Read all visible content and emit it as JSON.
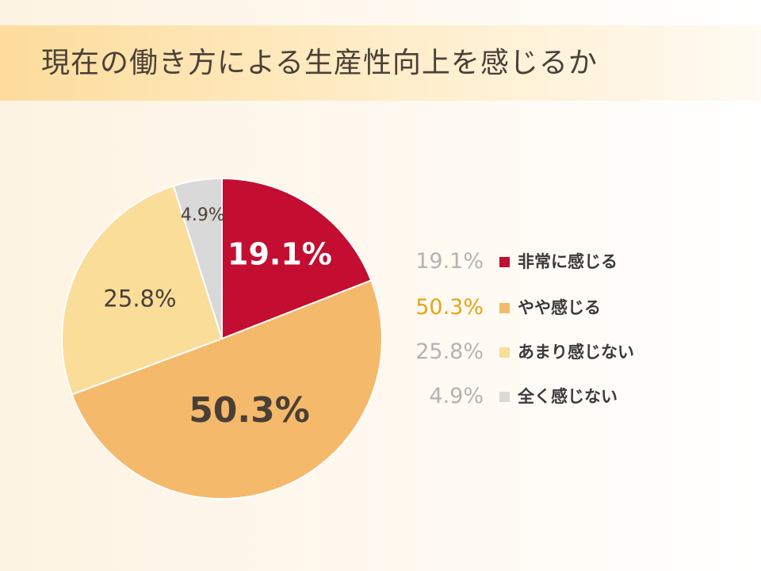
{
  "title": "現在の働き方による生産性向上を感じるか",
  "chart_data": {
    "type": "pie",
    "categories": [
      "非常に感じる",
      "やや感じる",
      "あまり感じない",
      "全く感じない"
    ],
    "values": [
      19.1,
      50.3,
      25.8,
      4.9
    ],
    "labels": [
      "19.1%",
      "50.3%",
      "25.8%",
      "4.9%"
    ],
    "colors": [
      "#c30d31",
      "#f5b96b",
      "#fbdd9a",
      "#d9d9d9"
    ],
    "label_colors": [
      "#ffffff",
      "#4a3f36",
      "#4a3f36",
      "#4a3f36"
    ],
    "legend_pct_colors": [
      "#b3b3b3",
      "#e9a317",
      "#b3b3b3",
      "#b3b3b3"
    ],
    "legend_position": "right",
    "start_angle": "12 o'clock, clockwise"
  }
}
